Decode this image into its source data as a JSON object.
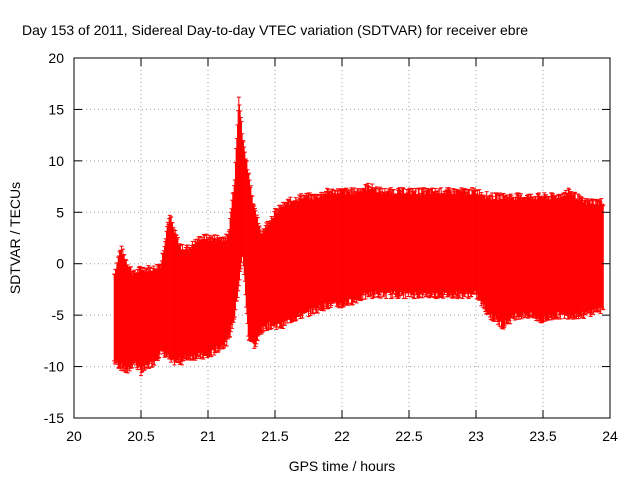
{
  "chart_data": {
    "type": "errorbar",
    "title": "Day 153 of 2011, Sidereal Day-to-day VTEC variation (SDTVAR) for receiver ebre",
    "xlabel": "GPS time / hours",
    "ylabel": "SDTVAR / TECUs",
    "xlim": [
      20,
      24
    ],
    "ylim": [
      -15,
      20
    ],
    "xticks": [
      "20",
      "20.5",
      "21",
      "21.5",
      "22",
      "22.5",
      "23",
      "23.5",
      "24"
    ],
    "yticks": [
      "-15",
      "-10",
      "-5",
      "0",
      "5",
      "10",
      "15",
      "20"
    ],
    "grid": true,
    "series_color": "#ff0000",
    "envelope_x": [
      20.3,
      20.35,
      20.4,
      20.45,
      20.5,
      20.55,
      20.6,
      20.65,
      20.7,
      20.72,
      20.75,
      20.8,
      20.85,
      20.9,
      20.95,
      21.0,
      21.05,
      21.1,
      21.15,
      21.2,
      21.23,
      21.26,
      21.3,
      21.35,
      21.4,
      21.45,
      21.5,
      21.55,
      21.6,
      21.7,
      21.8,
      21.9,
      22.0,
      22.1,
      22.2,
      22.3,
      22.4,
      22.5,
      22.6,
      22.7,
      22.8,
      22.9,
      23.0,
      23.05,
      23.1,
      23.2,
      23.3,
      23.4,
      23.5,
      23.6,
      23.7,
      23.8,
      23.9,
      23.95
    ],
    "envelope_upper": [
      -1.0,
      1.5,
      0.0,
      -1.0,
      -0.5,
      -0.5,
      -0.5,
      0.0,
      4.0,
      4.5,
      3.0,
      1.5,
      1.5,
      2.0,
      2.5,
      2.5,
      2.5,
      2.5,
      2.5,
      8.5,
      16.5,
      12.0,
      9.0,
      5.0,
      3.0,
      4.0,
      5.0,
      5.5,
      6.0,
      6.5,
      6.5,
      7.0,
      7.0,
      7.0,
      7.5,
      7.0,
      7.0,
      7.0,
      7.0,
      7.0,
      7.0,
      7.0,
      7.0,
      6.8,
      6.5,
      6.5,
      6.5,
      6.5,
      6.5,
      6.5,
      7.0,
      6.0,
      6.0,
      6.0
    ],
    "envelope_lower": [
      -9.5,
      -10.0,
      -10.5,
      -9.5,
      -10.5,
      -10.0,
      -9.5,
      -8.5,
      -9.0,
      -9.5,
      -9.5,
      -9.5,
      -9.0,
      -9.0,
      -9.0,
      -9.0,
      -8.5,
      -8.0,
      -7.5,
      -5.0,
      -2.0,
      1.0,
      -7.0,
      -8.0,
      -6.5,
      -6.0,
      -6.0,
      -6.0,
      -5.5,
      -5.0,
      -4.5,
      -4.0,
      -4.0,
      -3.5,
      -3.0,
      -3.0,
      -3.0,
      -3.0,
      -3.0,
      -3.0,
      -3.0,
      -3.0,
      -3.0,
      -4.0,
      -5.0,
      -6.0,
      -5.0,
      -5.0,
      -5.5,
      -5.0,
      -5.0,
      -5.0,
      -4.5,
      -4.5
    ]
  }
}
